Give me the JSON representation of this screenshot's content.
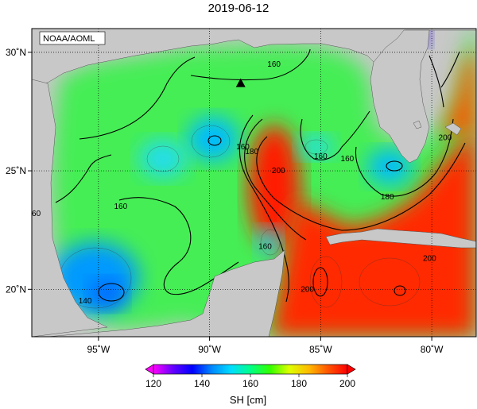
{
  "title": "2019-06-12",
  "credit": "NOAA/AOML",
  "map": {
    "lon_range": [
      -98,
      -78
    ],
    "lat_range": [
      18,
      31
    ],
    "lon_ticks": [
      {
        "value": -95,
        "label": "95˚W"
      },
      {
        "value": -90,
        "label": "90˚W"
      },
      {
        "value": -85,
        "label": "85˚W"
      },
      {
        "value": -80,
        "label": "80˚W"
      }
    ],
    "lat_ticks": [
      {
        "value": 30,
        "label": "30˚N"
      },
      {
        "value": 25,
        "label": "25˚N"
      },
      {
        "value": 20,
        "label": "20˚N"
      }
    ],
    "grid": true,
    "land_color": "#c8c8c8"
  },
  "contour_labels": [
    {
      "text": "160",
      "lon": -87.1,
      "lat": 29.5
    },
    {
      "text": "160",
      "lon": -88.5,
      "lat": 26.0
    },
    {
      "text": "180",
      "lon": -88.1,
      "lat": 25.8
    },
    {
      "text": "160",
      "lon": -85.0,
      "lat": 25.6
    },
    {
      "text": "160",
      "lon": -83.8,
      "lat": 25.5
    },
    {
      "text": "160",
      "lon": -94.0,
      "lat": 23.5
    },
    {
      "text": "60",
      "lon": -97.8,
      "lat": 23.2
    },
    {
      "text": "160",
      "lon": -87.5,
      "lat": 21.8
    },
    {
      "text": "200",
      "lon": -86.9,
      "lat": 25.0
    },
    {
      "text": "180",
      "lon": -82.0,
      "lat": 23.9
    },
    {
      "text": "200",
      "lon": -79.4,
      "lat": 26.4
    },
    {
      "text": "200",
      "lon": -85.6,
      "lat": 20.0
    },
    {
      "text": "200",
      "lon": -80.1,
      "lat": 21.3
    },
    {
      "text": "140",
      "lon": -95.6,
      "lat": 19.5
    }
  ],
  "marker": {
    "type": "triangle",
    "lon": -88.6,
    "lat": 28.7
  },
  "colorbar": {
    "min": 120,
    "max": 200,
    "ticks": [
      {
        "value": 120,
        "label": "120"
      },
      {
        "value": 140,
        "label": "140"
      },
      {
        "value": 160,
        "label": "160"
      },
      {
        "value": 180,
        "label": "180"
      },
      {
        "value": 200,
        "label": "200"
      }
    ],
    "stops": [
      "#ff00ff",
      "#6600ff",
      "#0000ff",
      "#0088ff",
      "#00ddff",
      "#00ff88",
      "#33ff00",
      "#ddff00",
      "#ffbb00",
      "#ff5500",
      "#ff0000"
    ],
    "unit": "SH [cm]"
  }
}
